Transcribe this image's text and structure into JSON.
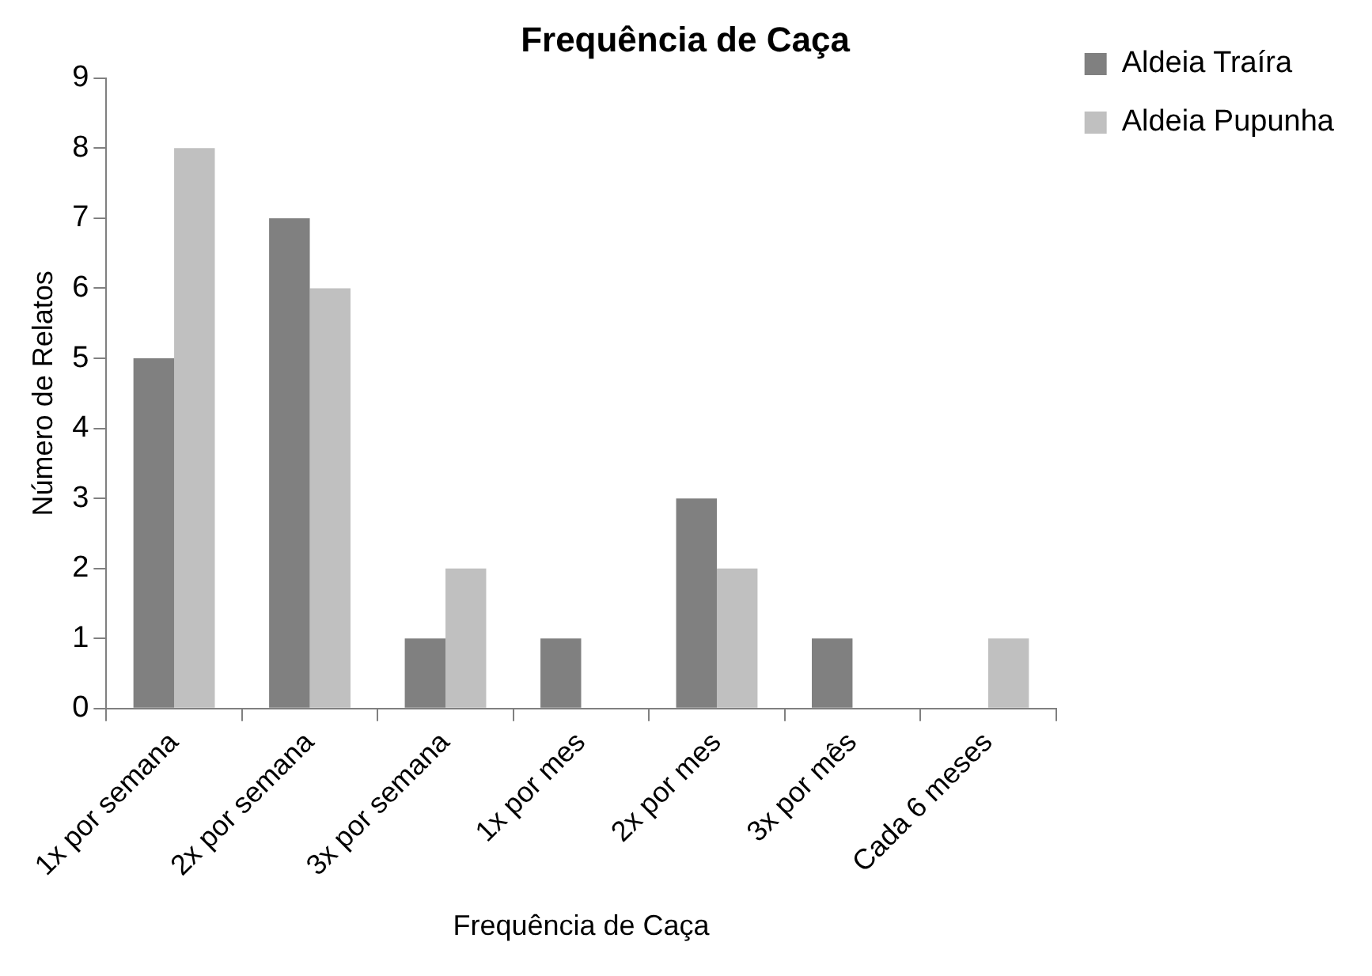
{
  "chart_data": {
    "type": "bar",
    "title": "Frequência de Caça",
    "xlabel": "Frequência de Caça",
    "ylabel": "Número de Relatos",
    "categories": [
      "1x por semana",
      "2x por semana",
      "3x por semana",
      "1x por mes",
      "2x por mes",
      "3x por mês",
      "Cada 6 meses"
    ],
    "series": [
      {
        "name": "Aldeia Traíra",
        "color": "#808080",
        "values": [
          5,
          7,
          1,
          1,
          3,
          1,
          0
        ]
      },
      {
        "name": "Aldeia Pupunha",
        "color": "#c0c0c0",
        "values": [
          8,
          6,
          2,
          0,
          2,
          0,
          1
        ]
      }
    ],
    "ylim": [
      0,
      9
    ],
    "yticks": [
      0,
      1,
      2,
      3,
      4,
      5,
      6,
      7,
      8,
      9
    ],
    "grid": false,
    "legend": "right"
  }
}
